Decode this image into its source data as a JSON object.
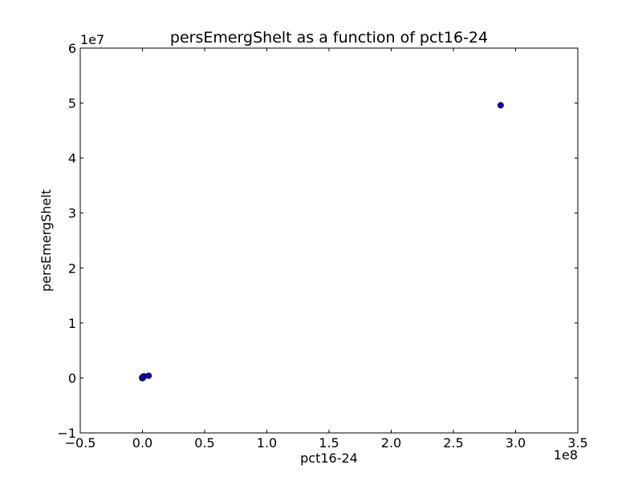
{
  "chart_data": {
    "type": "scatter",
    "title": "persEmergShelt as a function of pct16-24",
    "xlabel": "pct16-24",
    "ylabel": "persEmergShelt",
    "xlim": [
      -50000000,
      350000000
    ],
    "ylim": [
      -10000000,
      60000000
    ],
    "x_offset_label": "1e8",
    "y_offset_label": "1e7",
    "x_ticks": [
      {
        "value": -50000000,
        "label": "−0.5"
      },
      {
        "value": 0,
        "label": "0.0"
      },
      {
        "value": 50000000,
        "label": "0.5"
      },
      {
        "value": 100000000,
        "label": "1.0"
      },
      {
        "value": 150000000,
        "label": "1.5"
      },
      {
        "value": 200000000,
        "label": "2.0"
      },
      {
        "value": 250000000,
        "label": "2.5"
      },
      {
        "value": 300000000,
        "label": "3.0"
      },
      {
        "value": 350000000,
        "label": "3.5"
      }
    ],
    "y_ticks": [
      {
        "value": -10000000,
        "label": "−1"
      },
      {
        "value": 0,
        "label": "0"
      },
      {
        "value": 10000000,
        "label": "1"
      },
      {
        "value": 20000000,
        "label": "2"
      },
      {
        "value": 30000000,
        "label": "3"
      },
      {
        "value": 40000000,
        "label": "4"
      },
      {
        "value": 50000000,
        "label": "5"
      },
      {
        "value": 60000000,
        "label": "6"
      }
    ],
    "grid": false,
    "marker_color": "#0000ff",
    "marker_edge_color": "#000000",
    "points": [
      {
        "x": 288000000,
        "y": 49600000
      },
      {
        "x": 5000000,
        "y": 400000
      },
      {
        "x": 1200000,
        "y": 300000
      },
      {
        "x": 400000,
        "y": 150000
      },
      {
        "x": -300000,
        "y": 50000
      },
      {
        "x": 0,
        "y": 0
      },
      {
        "x": -200000,
        "y": -50000
      },
      {
        "x": 600000,
        "y": 250000
      },
      {
        "x": 300000,
        "y": -20000
      },
      {
        "x": 100000,
        "y": 80000
      }
    ]
  }
}
